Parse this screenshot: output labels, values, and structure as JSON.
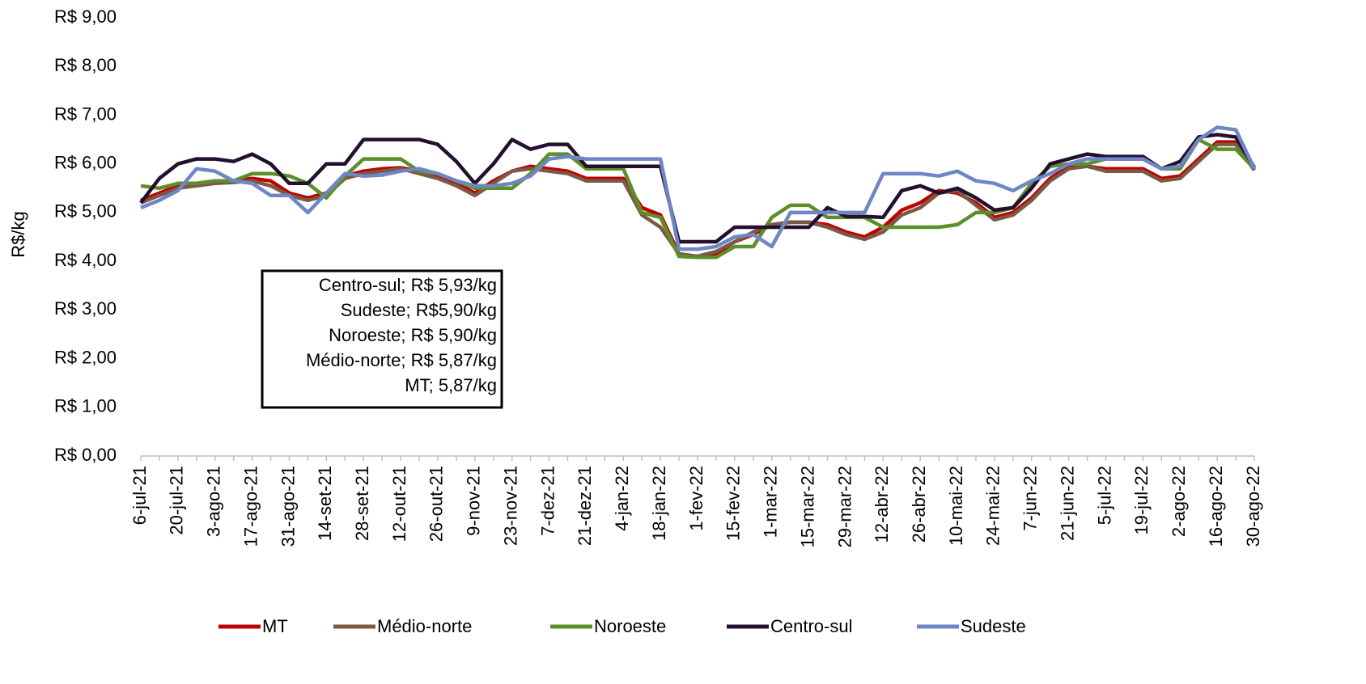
{
  "chart_data": {
    "type": "line",
    "y_label": "R$/kg",
    "categories": [
      "6-jul-21",
      null,
      "20-jul-21",
      null,
      "3-ago-21",
      null,
      "17-ago-21",
      null,
      "31-ago-21",
      null,
      "14-set-21",
      null,
      "28-set-21",
      null,
      "12-out-21",
      null,
      "26-out-21",
      null,
      "9-nov-21",
      null,
      "23-nov-21",
      null,
      "7-dez-21",
      null,
      "21-dez-21",
      null,
      "4-jan-22",
      null,
      "18-jan-22",
      null,
      "1-fev-22",
      null,
      "15-fev-22",
      null,
      "1-mar-22",
      null,
      "15-mar-22",
      null,
      "29-mar-22",
      null,
      "12-abr-22",
      null,
      "26-abr-22",
      null,
      "10-mai-22",
      null,
      "24-mai-22",
      null,
      "7-jun-22",
      null,
      "21-jun-22",
      null,
      "5-jul-22",
      null,
      "19-jul-22",
      null,
      "2-ago-22",
      null,
      "16-ago-22",
      null,
      "30-ago-22"
    ],
    "series": [
      {
        "name": "MT",
        "color": "#c00000",
        "values": [
          5.25,
          5.4,
          5.55,
          5.6,
          5.65,
          5.65,
          5.7,
          5.65,
          5.4,
          5.3,
          5.4,
          5.75,
          5.85,
          5.9,
          5.92,
          5.85,
          5.75,
          5.6,
          5.4,
          5.65,
          5.85,
          5.95,
          5.9,
          5.85,
          5.7,
          5.7,
          5.7,
          5.1,
          4.95,
          4.15,
          4.1,
          4.15,
          4.4,
          4.55,
          4.75,
          4.8,
          4.8,
          4.75,
          4.6,
          4.5,
          4.7,
          5.05,
          5.2,
          5.45,
          5.4,
          5.2,
          4.9,
          5.0,
          5.3,
          5.7,
          5.95,
          5.95,
          5.9,
          5.9,
          5.9,
          5.7,
          5.75,
          6.1,
          6.45,
          6.45,
          5.87
        ]
      },
      {
        "name": "Médio-norte",
        "color": "#7b5a45",
        "values": [
          5.2,
          5.35,
          5.5,
          5.55,
          5.6,
          5.62,
          5.65,
          5.55,
          5.35,
          5.25,
          5.35,
          5.7,
          5.8,
          5.85,
          5.9,
          5.8,
          5.7,
          5.55,
          5.35,
          5.6,
          5.85,
          5.9,
          5.85,
          5.8,
          5.65,
          5.65,
          5.65,
          4.95,
          4.7,
          4.15,
          4.1,
          4.2,
          4.4,
          4.6,
          4.75,
          4.8,
          4.8,
          4.7,
          4.55,
          4.45,
          4.6,
          4.95,
          5.1,
          5.4,
          5.45,
          5.15,
          4.85,
          4.95,
          5.25,
          5.65,
          5.9,
          5.95,
          5.85,
          5.85,
          5.85,
          5.65,
          5.7,
          6.05,
          6.4,
          6.4,
          5.87
        ]
      },
      {
        "name": "Noroeste",
        "color": "#5c8f29",
        "values": [
          5.55,
          5.5,
          5.6,
          5.6,
          5.65,
          5.65,
          5.8,
          5.8,
          5.75,
          5.6,
          5.3,
          5.75,
          6.1,
          6.1,
          6.1,
          5.85,
          5.8,
          5.65,
          5.5,
          5.5,
          5.5,
          5.8,
          6.2,
          6.2,
          5.9,
          5.9,
          5.9,
          5.0,
          4.9,
          4.1,
          4.08,
          4.08,
          4.3,
          4.3,
          4.9,
          5.15,
          5.15,
          4.9,
          4.9,
          4.9,
          4.7,
          4.7,
          4.7,
          4.7,
          4.75,
          5.0,
          5.0,
          5.1,
          5.6,
          5.95,
          6.0,
          6.0,
          6.1,
          6.1,
          6.1,
          5.9,
          5.9,
          6.5,
          6.3,
          6.3,
          5.9
        ]
      },
      {
        "name": "Centro-sul",
        "color": "#230f2e",
        "values": [
          5.2,
          5.7,
          6.0,
          6.1,
          6.1,
          6.05,
          6.2,
          6.0,
          5.6,
          5.6,
          6.0,
          6.0,
          6.5,
          6.5,
          6.5,
          6.5,
          6.4,
          6.05,
          5.6,
          6.0,
          6.5,
          6.3,
          6.4,
          6.4,
          5.95,
          5.95,
          5.95,
          5.95,
          5.95,
          4.4,
          4.4,
          4.4,
          4.7,
          4.7,
          4.7,
          4.7,
          4.7,
          5.1,
          4.92,
          4.92,
          4.9,
          5.45,
          5.55,
          5.4,
          5.5,
          5.3,
          5.05,
          5.1,
          5.5,
          6.0,
          6.1,
          6.2,
          6.15,
          6.15,
          6.15,
          5.9,
          6.05,
          6.55,
          6.6,
          6.55,
          5.93
        ]
      },
      {
        "name": "Sudeste",
        "color": "#6f86c6",
        "values": [
          5.1,
          5.25,
          5.45,
          5.9,
          5.85,
          5.65,
          5.6,
          5.35,
          5.35,
          5.0,
          5.4,
          5.8,
          5.75,
          5.77,
          5.85,
          5.9,
          5.8,
          5.65,
          5.55,
          5.55,
          5.6,
          5.75,
          6.1,
          6.15,
          6.1,
          6.1,
          6.1,
          6.1,
          6.1,
          4.25,
          4.25,
          4.3,
          4.5,
          4.55,
          4.3,
          5.0,
          5.0,
          5.0,
          5.0,
          5.0,
          5.8,
          5.8,
          5.8,
          5.75,
          5.85,
          5.65,
          5.6,
          5.45,
          5.65,
          5.8,
          6.0,
          6.1,
          6.1,
          6.1,
          6.1,
          5.9,
          5.95,
          6.5,
          6.75,
          6.7,
          5.9
        ]
      }
    ],
    "ylim": [
      0,
      9
    ],
    "yticks": [
      {
        "value": 0,
        "label": "R$ 0,00"
      },
      {
        "value": 1,
        "label": "R$ 1,00"
      },
      {
        "value": 2,
        "label": "R$ 2,00"
      },
      {
        "value": 3,
        "label": "R$ 3,00"
      },
      {
        "value": 4,
        "label": "R$ 4,00"
      },
      {
        "value": 5,
        "label": "R$ 5,00"
      },
      {
        "value": 6,
        "label": "R$ 6,00"
      },
      {
        "value": 7,
        "label": "R$ 7,00"
      },
      {
        "value": 8,
        "label": "R$ 8,00"
      },
      {
        "value": 9,
        "label": "R$ 9,00"
      }
    ],
    "grid": false,
    "legend": "bottom",
    "annotation": [
      "Centro-sul; R$ 5,93/kg",
      "Sudeste; R$5,90/kg",
      "Noroeste; R$ 5,90/kg",
      "Médio-norte; R$ 5,87/kg",
      "MT; 5,87/kg"
    ]
  }
}
